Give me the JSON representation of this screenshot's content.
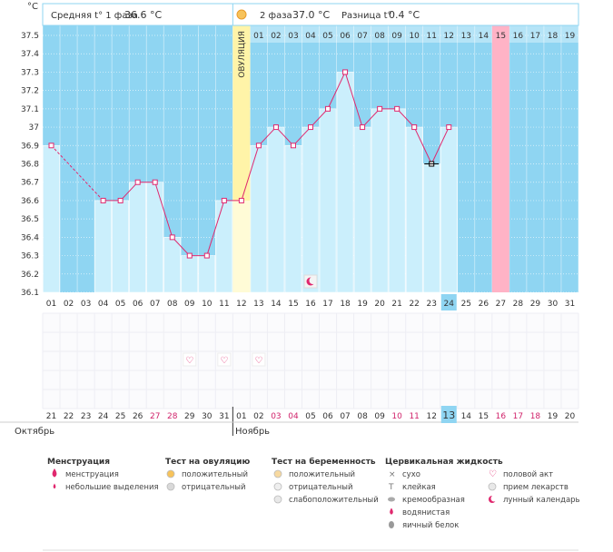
{
  "header": {
    "unit_label": "°C",
    "phase1_label": "Средняя t° 1 фаза",
    "phase1_value": "36.6 °C",
    "phase2_label": "2 фаза",
    "phase2_value": "37.0 °C",
    "diff_label": "Разница t°",
    "diff_value": "0.4 °C",
    "ovulation_label": "ОВУЛЯЦИЯ"
  },
  "months": {
    "left": "Октябрь",
    "right": "Ноябрь"
  },
  "legend": {
    "menstruation": {
      "title": "Менструация",
      "items": [
        "менструация",
        "небольшие выделения"
      ]
    },
    "ovulation_test": {
      "title": "Тест на овуляцию",
      "items": [
        "положительный",
        "отрицательный"
      ]
    },
    "pregnancy_test": {
      "title": "Тест на беременность",
      "items": [
        "положительный",
        "отрицательный",
        "слабоположительный"
      ]
    },
    "cervical": {
      "title": "Цервикальная жидкость",
      "items": [
        "сухо",
        "клейкая",
        "кремообразная",
        "водянистая",
        "яичный белок"
      ]
    },
    "other": {
      "items": [
        "половой акт",
        "прием лекарств",
        "лунный календарь"
      ]
    }
  },
  "colors": {
    "background": "#8fd5f2",
    "bar_fill": "#cbeffc",
    "line": "#e0286e",
    "ovulation": "#fff4a8",
    "highlight": "#ffb3c6",
    "today": "#8fd5f2"
  },
  "chart_data": {
    "type": "bar",
    "title": "",
    "ylabel": "°C",
    "ylim": [
      36.1,
      37.5
    ],
    "yticks": [
      "37.5",
      "37.4",
      "37.3",
      "37.2",
      "37.1",
      "37",
      "36.9",
      "36.8",
      "36.7",
      "36.6",
      "36.5",
      "36.4",
      "36.3",
      "36.2",
      "36.1"
    ],
    "cycle_days": [
      "01",
      "02",
      "03",
      "04",
      "05",
      "06",
      "07",
      "08",
      "09",
      "10",
      "11",
      "12",
      "13",
      "14",
      "15",
      "16",
      "17",
      "18",
      "19",
      "20",
      "21",
      "22",
      "23",
      "24",
      "25",
      "26",
      "27",
      "28",
      "29",
      "30",
      "31"
    ],
    "post_ovulation_days": [
      "01",
      "02",
      "03",
      "04",
      "05",
      "06",
      "07",
      "08",
      "09",
      "10",
      "11",
      "12",
      "13",
      "14",
      "15",
      "16",
      "17",
      "18",
      "19"
    ],
    "dates": [
      "21",
      "22",
      "23",
      "24",
      "25",
      "26",
      "27",
      "28",
      "29",
      "30",
      "31",
      "01",
      "02",
      "03",
      "04",
      "05",
      "06",
      "07",
      "08",
      "09",
      "10",
      "11",
      "12",
      "13",
      "14",
      "15",
      "16",
      "17",
      "18",
      "19",
      "20"
    ],
    "red_dates": [
      6,
      7,
      13,
      14,
      20,
      21,
      27,
      28
    ],
    "temperatures": [
      36.9,
      null,
      null,
      36.6,
      36.6,
      36.7,
      36.7,
      36.4,
      36.3,
      36.3,
      36.6,
      36.6,
      36.9,
      37.0,
      36.9,
      37.0,
      37.1,
      37.3,
      37.0,
      37.1,
      37.1,
      37.0,
      36.8,
      37.0,
      null,
      null,
      null,
      null,
      null,
      null,
      null
    ],
    "dashed_segment": [
      1,
      4
    ],
    "ovulation_day": 12,
    "highlighted_day": 27,
    "current_day": 24,
    "intercourse_days": [
      9,
      11,
      13
    ],
    "lunar_day": 16,
    "black_marker_day": 23
  }
}
